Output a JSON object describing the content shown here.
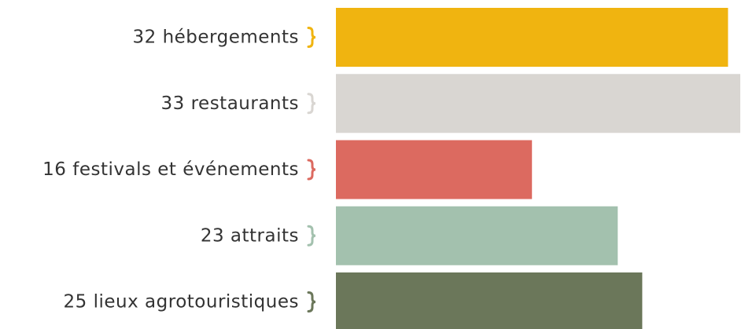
{
  "chart_data": {
    "type": "bar",
    "orientation": "horizontal",
    "categories": [
      "hébergements",
      "restaurants",
      "festivals et événements",
      "attraits",
      "lieux agrotouristiques"
    ],
    "values": [
      32,
      33,
      16,
      23,
      25
    ],
    "colors": [
      "#f0b410",
      "#d9d6d2",
      "#dc6a60",
      "#a3c1ae",
      "#6b775a"
    ],
    "xlim": [
      0,
      33
    ]
  }
}
